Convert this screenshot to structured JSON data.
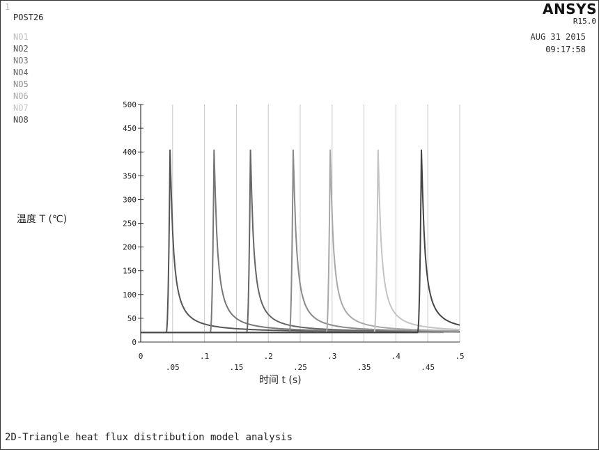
{
  "window_number": "1",
  "program": "POST26",
  "logo": "ANSYS",
  "release": "R15.0",
  "date": "AUG 31 2015",
  "time": "09:17:58",
  "caption": "2D-Triangle heat flux distribution model analysis",
  "legend": [
    {
      "label": "NO1",
      "color": "#bdbdbd"
    },
    {
      "label": "NO2",
      "color": "#555555"
    },
    {
      "label": "NO3",
      "color": "#777777"
    },
    {
      "label": "NO4",
      "color": "#666666"
    },
    {
      "label": "NO5",
      "color": "#8a8a8a"
    },
    {
      "label": "NO6",
      "color": "#a8a8a8"
    },
    {
      "label": "NO7",
      "color": "#c4c4c4"
    },
    {
      "label": "NO8",
      "color": "#444444"
    }
  ],
  "chart_data": {
    "type": "line",
    "title": "",
    "xlabel": "时间 t (s)",
    "ylabel": "温度 T (℃)",
    "xlim": [
      0,
      0.5
    ],
    "ylim": [
      0,
      500
    ],
    "grid": true,
    "x_ticks": [
      "0",
      ".05",
      ".1",
      ".15",
      ".2",
      ".25",
      ".3",
      ".35",
      ".4",
      ".45",
      ".5"
    ],
    "y_ticks": [
      "0",
      "50",
      "100",
      "150",
      "200",
      "250",
      "300",
      "350",
      "400",
      "450",
      "500"
    ],
    "baseline": 20,
    "series": [
      {
        "name": "NO1",
        "color": "#bdbdbd",
        "onset": 0.0,
        "peak_time": 0.0,
        "peak": 20
      },
      {
        "name": "NO2",
        "color": "#555555",
        "onset": 0.04,
        "peak_time": 0.046,
        "peak": 405
      },
      {
        "name": "NO3",
        "color": "#777777",
        "onset": 0.109,
        "peak_time": 0.115,
        "peak": 405
      },
      {
        "name": "NO4",
        "color": "#666666",
        "onset": 0.166,
        "peak_time": 0.172,
        "peak": 405
      },
      {
        "name": "NO5",
        "color": "#8a8a8a",
        "onset": 0.233,
        "peak_time": 0.239,
        "peak": 405
      },
      {
        "name": "NO6",
        "color": "#a8a8a8",
        "onset": 0.291,
        "peak_time": 0.297,
        "peak": 405
      },
      {
        "name": "NO7",
        "color": "#c4c4c4",
        "onset": 0.366,
        "peak_time": 0.372,
        "peak": 405
      },
      {
        "name": "NO8",
        "color": "#444444",
        "onset": 0.434,
        "peak_time": 0.44,
        "peak": 405
      }
    ]
  }
}
